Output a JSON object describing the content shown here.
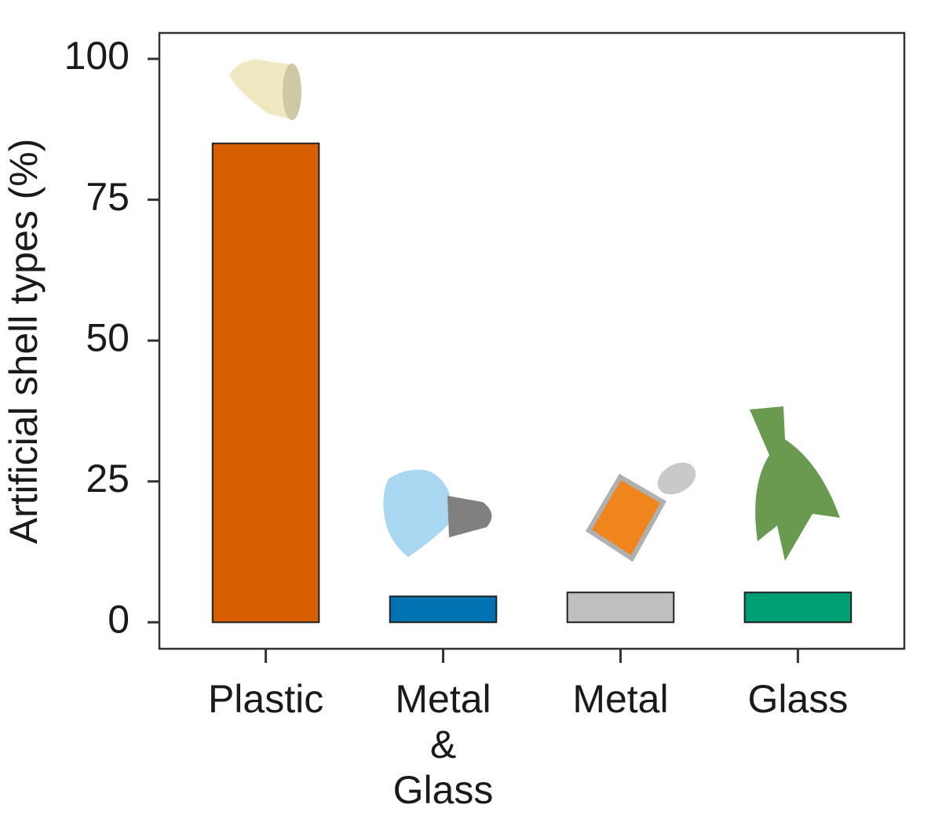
{
  "chart_data": {
    "type": "bar",
    "y_label": "Artificial shell types (%)",
    "categories": [
      "Plastic",
      "Metal\n&\nGlass",
      "Metal",
      "Glass"
    ],
    "values": [
      85,
      4.6,
      5.3,
      5.3
    ],
    "colors": [
      "#d55e00",
      "#0072b2",
      "#bfbfbf",
      "#009e73"
    ],
    "ylim": [
      -4.7,
      104.6
    ],
    "yticks": [
      0,
      25,
      50,
      75,
      100
    ]
  }
}
